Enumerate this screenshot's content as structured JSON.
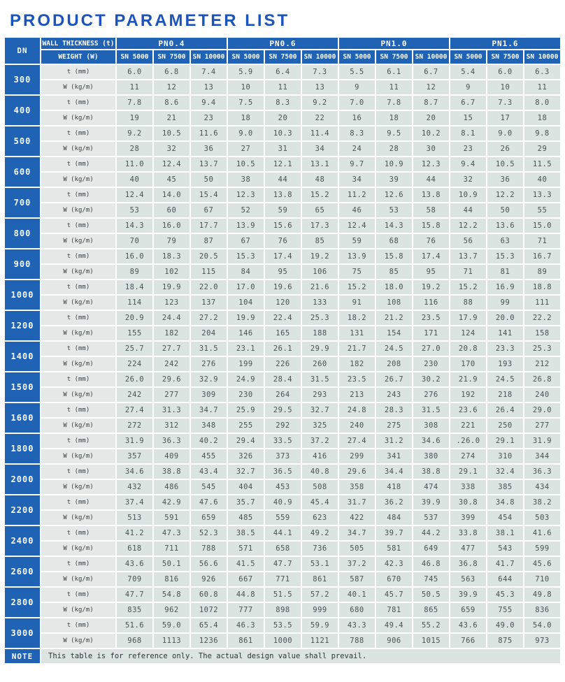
{
  "title": "PRODUCT PARAMETER LIST",
  "table": {
    "dn_header": "DN",
    "row1_label": "WALL THICKNESS (t)",
    "row2_label": "WEIGHT (W)",
    "pn_groups": [
      "PN0.4",
      "PN0.6",
      "PN1.0",
      "PN1.6"
    ],
    "sn_columns": [
      "SN 5000",
      "SN 7500",
      "SN 10000"
    ],
    "t_label": "t (mm)",
    "w_label": "W (kg/m)",
    "rows": [
      {
        "dn": "300",
        "t": [
          "6.0",
          "6.8",
          "7.4",
          "5.9",
          "6.4",
          "7.3",
          "5.5",
          "6.1",
          "6.7",
          "5.4",
          "6.0",
          "6.3"
        ],
        "w": [
          "11",
          "12",
          "13",
          "10",
          "11",
          "13",
          "9",
          "11",
          "12",
          "9",
          "10",
          "11"
        ]
      },
      {
        "dn": "400",
        "t": [
          "7.8",
          "8.6",
          "9.4",
          "7.5",
          "8.3",
          "9.2",
          "7.0",
          "7.8",
          "8.7",
          "6.7",
          "7.3",
          "8.0"
        ],
        "w": [
          "19",
          "21",
          "23",
          "18",
          "20",
          "22",
          "16",
          "18",
          "20",
          "15",
          "17",
          "18"
        ]
      },
      {
        "dn": "500",
        "t": [
          "9.2",
          "10.5",
          "11.6",
          "9.0",
          "10.3",
          "11.4",
          "8.3",
          "9.5",
          "10.2",
          "8.1",
          "9.0",
          "9.8"
        ],
        "w": [
          "28",
          "32",
          "36",
          "27",
          "31",
          "34",
          "24",
          "28",
          "30",
          "23",
          "26",
          "29"
        ]
      },
      {
        "dn": "600",
        "t": [
          "11.0",
          "12.4",
          "13.7",
          "10.5",
          "12.1",
          "13.1",
          "9.7",
          "10.9",
          "12.3",
          "9.4",
          "10.5",
          "11.5"
        ],
        "w": [
          "40",
          "45",
          "50",
          "38",
          "44",
          "48",
          "34",
          "39",
          "44",
          "32",
          "36",
          "40"
        ]
      },
      {
        "dn": "700",
        "t": [
          "12.4",
          "14.0",
          "15.4",
          "12.3",
          "13.8",
          "15.2",
          "11.2",
          "12.6",
          "13.8",
          "10.9",
          "12.2",
          "13.3"
        ],
        "w": [
          "53",
          "60",
          "67",
          "52",
          "59",
          "65",
          "46",
          "53",
          "58",
          "44",
          "50",
          "55"
        ]
      },
      {
        "dn": "800",
        "t": [
          "14.3",
          "16.0",
          "17.7",
          "13.9",
          "15.6",
          "17.3",
          "12.4",
          "14.3",
          "15.8",
          "12.2",
          "13.6",
          "15.0"
        ],
        "w": [
          "70",
          "79",
          "87",
          "67",
          "76",
          "85",
          "59",
          "68",
          "76",
          "56",
          "63",
          "71"
        ]
      },
      {
        "dn": "900",
        "t": [
          "16.0",
          "18.3",
          "20.5",
          "15.3",
          "17.4",
          "19.2",
          "13.9",
          "15.8",
          "17.4",
          "13.7",
          "15.3",
          "16.7"
        ],
        "w": [
          "89",
          "102",
          "115",
          "84",
          "95",
          "106",
          "75",
          "85",
          "95",
          "71",
          "81",
          "89"
        ]
      },
      {
        "dn": "1000",
        "t": [
          "18.4",
          "19.9",
          "22.0",
          "17.0",
          "19.6",
          "21.6",
          "15.2",
          "18.0",
          "19.2",
          "15.2",
          "16.9",
          "18.8"
        ],
        "w": [
          "114",
          "123",
          "137",
          "104",
          "120",
          "133",
          "91",
          "108",
          "116",
          "88",
          "99",
          "111"
        ]
      },
      {
        "dn": "1200",
        "t": [
          "20.9",
          "24.4",
          "27.2",
          "19.9",
          "22.4",
          "25.3",
          "18.2",
          "21.2",
          "23.5",
          "17.9",
          "20.0",
          "22.2"
        ],
        "w": [
          "155",
          "182",
          "204",
          "146",
          "165",
          "188",
          "131",
          "154",
          "171",
          "124",
          "141",
          "158"
        ]
      },
      {
        "dn": "1400",
        "t": [
          "25.7",
          "27.7",
          "31.5",
          "23.1",
          "26.1",
          "29.9",
          "21.7",
          "24.5",
          "27.0",
          "20.8",
          "23.3",
          "25.3"
        ],
        "w": [
          "224",
          "242",
          "276",
          "199",
          "226",
          "260",
          "182",
          "208",
          "230",
          "170",
          "193",
          "212"
        ]
      },
      {
        "dn": "1500",
        "t": [
          "26.0",
          "29.6",
          "32.9",
          "24.9",
          "28.4",
          "31.5",
          "23.5",
          "26.7",
          "30.2",
          "21.9",
          "24.5",
          "26.8"
        ],
        "w": [
          "242",
          "277",
          "309",
          "230",
          "264",
          "293",
          "213",
          "243",
          "276",
          "192",
          "218",
          "240"
        ]
      },
      {
        "dn": "1600",
        "t": [
          "27.4",
          "31.3",
          "34.7",
          "25.9",
          "29.5",
          "32.7",
          "24.8",
          "28.3",
          "31.5",
          "23.6",
          "26.4",
          "29.0"
        ],
        "w": [
          "272",
          "312",
          "348",
          "255",
          "292",
          "325",
          "240",
          "275",
          "308",
          "221",
          "250",
          "277"
        ]
      },
      {
        "dn": "1800",
        "t": [
          "31.9",
          "36.3",
          "40.2",
          "29.4",
          "33.5",
          "37.2",
          "27.4",
          "31.2",
          "34.6",
          ".26.0",
          "29.1",
          "31.9"
        ],
        "w": [
          "357",
          "409",
          "455",
          "326",
          "373",
          "416",
          "299",
          "341",
          "380",
          "274",
          "310",
          "344"
        ]
      },
      {
        "dn": "2000",
        "t": [
          "34.6",
          "38.8",
          "43.4",
          "32.7",
          "36.5",
          "40.8",
          "29.6",
          "34.4",
          "38.8",
          "29.1",
          "32.4",
          "36.3"
        ],
        "w": [
          "432",
          "486",
          "545",
          "404",
          "453",
          "508",
          "358",
          "418",
          "474",
          "338",
          "385",
          "434"
        ]
      },
      {
        "dn": "2200",
        "t": [
          "37.4",
          "42.9",
          "47.6",
          "35.7",
          "40.9",
          "45.4",
          "31.7",
          "36.2",
          "39.9",
          "30.8",
          "34.8",
          "38.2"
        ],
        "w": [
          "513",
          "591",
          "659",
          "485",
          "559",
          "623",
          "422",
          "484",
          "537",
          "399",
          "454",
          "503"
        ]
      },
      {
        "dn": "2400",
        "t": [
          "41.2",
          "47.3",
          "52.3",
          "38.5",
          "44.1",
          "49.2",
          "34.7",
          "39.7",
          "44.2",
          "33.8",
          "38.1",
          "41.6"
        ],
        "w": [
          "618",
          "711",
          "788",
          "571",
          "658",
          "736",
          "505",
          "581",
          "649",
          "477",
          "543",
          "599"
        ]
      },
      {
        "dn": "2600",
        "t": [
          "43.6",
          "50.1",
          "56.6",
          "41.5",
          "47.7",
          "53.1",
          "37.2",
          "42.3",
          "46.8",
          "36.8",
          "41.7",
          "45.6"
        ],
        "w": [
          "709",
          "816",
          "926",
          "667",
          "771",
          "861",
          "587",
          "670",
          "745",
          "563",
          "644",
          "710"
        ]
      },
      {
        "dn": "2800",
        "t": [
          "47.7",
          "54.8",
          "60.8",
          "44.8",
          "51.5",
          "57.2",
          "40.1",
          "45.7",
          "50.5",
          "39.9",
          "45.3",
          "49.8"
        ],
        "w": [
          "835",
          "962",
          "1072",
          "777",
          "898",
          "999",
          "680",
          "781",
          "865",
          "659",
          "755",
          "836"
        ]
      },
      {
        "dn": "3000",
        "t": [
          "51.6",
          "59.0",
          "65.4",
          "46.3",
          "53.5",
          "59.9",
          "43.3",
          "49.4",
          "55.2",
          "43.6",
          "49.0",
          "54.0"
        ],
        "w": [
          "968",
          "1113",
          "1236",
          "861",
          "1000",
          "1121",
          "788",
          "906",
          "1015",
          "766",
          "875",
          "973"
        ]
      }
    ],
    "note_label": "NOTE",
    "note_text": "This table is for reference only. The actual design value shall prevail."
  },
  "colors": {
    "header_blue": "#2062b4",
    "title_blue": "#1d54bb",
    "data_cell_bg": "#dce4e1",
    "label_cell_bg": "#e4e8e6"
  }
}
